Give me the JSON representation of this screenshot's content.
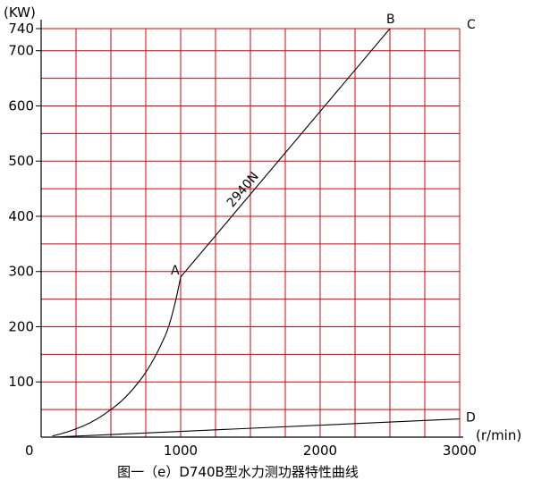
{
  "chart_data": {
    "type": "line",
    "title": "",
    "caption": "图一（e）D740B型水力测功器特性曲线",
    "xlabel": "(r/min)",
    "ylabel": "(KW)",
    "xlim": [
      0,
      3000
    ],
    "ylim": [
      0,
      740
    ],
    "grid": true,
    "x_ticks": [
      {
        "value": 0,
        "label": "0"
      },
      {
        "value": 1000,
        "label": "1000"
      },
      {
        "value": 2000,
        "label": "2000"
      },
      {
        "value": 3000,
        "label": "3000"
      }
    ],
    "y_ticks": [
      {
        "value": 100,
        "label": "100"
      },
      {
        "value": 200,
        "label": "200"
      },
      {
        "value": 300,
        "label": "300"
      },
      {
        "value": 400,
        "label": "400"
      },
      {
        "value": 500,
        "label": "500"
      },
      {
        "value": 600,
        "label": "600"
      },
      {
        "value": 700,
        "label": "700"
      },
      {
        "value": 740,
        "label": "740"
      }
    ],
    "series": [
      {
        "name": "",
        "label": "2940N",
        "x": [
          80,
          300,
          500,
          700,
          900,
          1000,
          2500
        ],
        "y": [
          2,
          20,
          50,
          100,
          190,
          290,
          740
        ]
      },
      {
        "name": "",
        "x": [
          80,
          3000
        ],
        "y": [
          0,
          33
        ]
      }
    ],
    "point_labels": [
      {
        "text": "A",
        "x": 1000,
        "y": 290
      },
      {
        "text": "B",
        "x": 2500,
        "y": 740
      },
      {
        "text": "C",
        "x": 3000,
        "y": 740
      },
      {
        "text": "D",
        "x": 3000,
        "y": 33
      }
    ],
    "colors": {
      "grid": "#d9000b",
      "curve": "#000000"
    }
  }
}
